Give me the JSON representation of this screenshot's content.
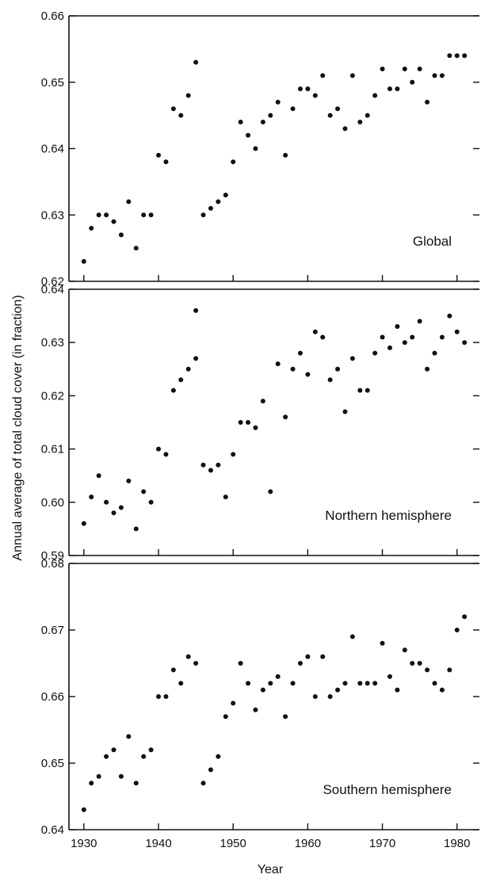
{
  "figure": {
    "ylabel": "Annual average of total cloud cover (in fraction)",
    "xlabel": "Year"
  },
  "chart_data": [
    {
      "type": "scatter",
      "title": "",
      "panel_label": "Global",
      "xlim": [
        1928,
        1983
      ],
      "ylim": [
        0.62,
        0.66
      ],
      "xticks": [
        1930,
        1940,
        1950,
        1960,
        1970,
        1980
      ],
      "yticks": [
        "0.62",
        "0.63",
        "0.64",
        "0.65",
        "0.66"
      ],
      "series": [
        {
          "x": [
            1930,
            1931,
            1932,
            1933,
            1934,
            1935,
            1936,
            1937,
            1938,
            1939,
            1940,
            1941,
            1942,
            1943,
            1944,
            1945,
            1946,
            1947,
            1948,
            1949,
            1950,
            1951,
            1952,
            1953,
            1954,
            1955,
            1956,
            1957,
            1958,
            1959,
            1960,
            1961,
            1962,
            1963,
            1964,
            1965,
            1966,
            1967,
            1968,
            1969,
            1970,
            1971,
            1972,
            1973,
            1974,
            1975,
            1976,
            1977,
            1978,
            1979,
            1980,
            1981
          ],
          "y": [
            0.623,
            0.628,
            0.63,
            0.63,
            0.629,
            0.627,
            0.632,
            0.625,
            0.63,
            0.63,
            0.639,
            0.638,
            0.646,
            0.645,
            0.648,
            0.653,
            0.63,
            0.631,
            0.632,
            0.633,
            0.638,
            0.644,
            0.642,
            0.64,
            0.644,
            0.645,
            0.647,
            0.639,
            0.646,
            0.649,
            0.649,
            0.648,
            0.651,
            0.645,
            0.646,
            0.643,
            0.651,
            0.644,
            0.645,
            0.648,
            0.652,
            0.649,
            0.649,
            0.652,
            0.65,
            0.652,
            0.647,
            0.651,
            0.651,
            0.654,
            0.654,
            0.654
          ]
        }
      ]
    },
    {
      "type": "scatter",
      "title": "",
      "panel_label": "Northern hemisphere",
      "xlim": [
        1928,
        1983
      ],
      "ylim": [
        0.59,
        0.64
      ],
      "xticks": [
        1930,
        1940,
        1950,
        1960,
        1970,
        1980
      ],
      "yticks": [
        "0.59",
        "0.60",
        "0.61",
        "0.62",
        "0.63",
        "0.64"
      ],
      "series": [
        {
          "x": [
            1930,
            1931,
            1932,
            1933,
            1934,
            1935,
            1936,
            1937,
            1938,
            1939,
            1940,
            1941,
            1942,
            1943,
            1944,
            1945,
            1945,
            1946,
            1947,
            1948,
            1949,
            1950,
            1951,
            1952,
            1953,
            1954,
            1955,
            1956,
            1957,
            1958,
            1959,
            1960,
            1961,
            1962,
            1963,
            1964,
            1965,
            1966,
            1967,
            1968,
            1969,
            1970,
            1971,
            1972,
            1973,
            1974,
            1975,
            1976,
            1977,
            1978,
            1979,
            1980,
            1981
          ],
          "y": [
            0.596,
            0.601,
            0.605,
            0.6,
            0.598,
            0.599,
            0.604,
            0.595,
            0.602,
            0.6,
            0.61,
            0.609,
            0.621,
            0.623,
            0.625,
            0.627,
            0.636,
            0.607,
            0.606,
            0.607,
            0.601,
            0.609,
            0.615,
            0.615,
            0.614,
            0.619,
            0.602,
            0.626,
            0.616,
            0.625,
            0.628,
            0.624,
            0.632,
            0.631,
            0.623,
            0.625,
            0.617,
            0.627,
            0.621,
            0.621,
            0.628,
            0.631,
            0.629,
            0.633,
            0.63,
            0.631,
            0.634,
            0.625,
            0.628,
            0.631,
            0.635,
            0.632,
            0.63
          ]
        }
      ]
    },
    {
      "type": "scatter",
      "title": "",
      "panel_label": "Southern hemisphere",
      "xlim": [
        1928,
        1983
      ],
      "ylim": [
        0.64,
        0.68
      ],
      "xticks": [
        1930,
        1940,
        1950,
        1960,
        1970,
        1980
      ],
      "yticks": [
        "0.64",
        "0.65",
        "0.66",
        "0.67",
        "0.68"
      ],
      "series": [
        {
          "x": [
            1930,
            1931,
            1932,
            1933,
            1934,
            1935,
            1936,
            1937,
            1938,
            1939,
            1940,
            1941,
            1942,
            1943,
            1944,
            1945,
            1946,
            1947,
            1948,
            1949,
            1950,
            1951,
            1952,
            1953,
            1954,
            1955,
            1956,
            1957,
            1958,
            1959,
            1960,
            1961,
            1962,
            1963,
            1964,
            1965,
            1966,
            1967,
            1968,
            1969,
            1970,
            1971,
            1972,
            1973,
            1974,
            1975,
            1976,
            1977,
            1978,
            1979,
            1980,
            1981
          ],
          "y": [
            0.643,
            0.647,
            0.648,
            0.651,
            0.652,
            0.648,
            0.654,
            0.647,
            0.651,
            0.652,
            0.66,
            0.66,
            0.664,
            0.662,
            0.666,
            0.665,
            0.647,
            0.649,
            0.651,
            0.657,
            0.659,
            0.665,
            0.662,
            0.658,
            0.661,
            0.662,
            0.663,
            0.657,
            0.662,
            0.665,
            0.666,
            0.66,
            0.666,
            0.66,
            0.661,
            0.662,
            0.669,
            0.662,
            0.662,
            0.662,
            0.668,
            0.663,
            0.661,
            0.667,
            0.665,
            0.665,
            0.664,
            0.662,
            0.661,
            0.664,
            0.67,
            0.672
          ]
        }
      ]
    }
  ]
}
